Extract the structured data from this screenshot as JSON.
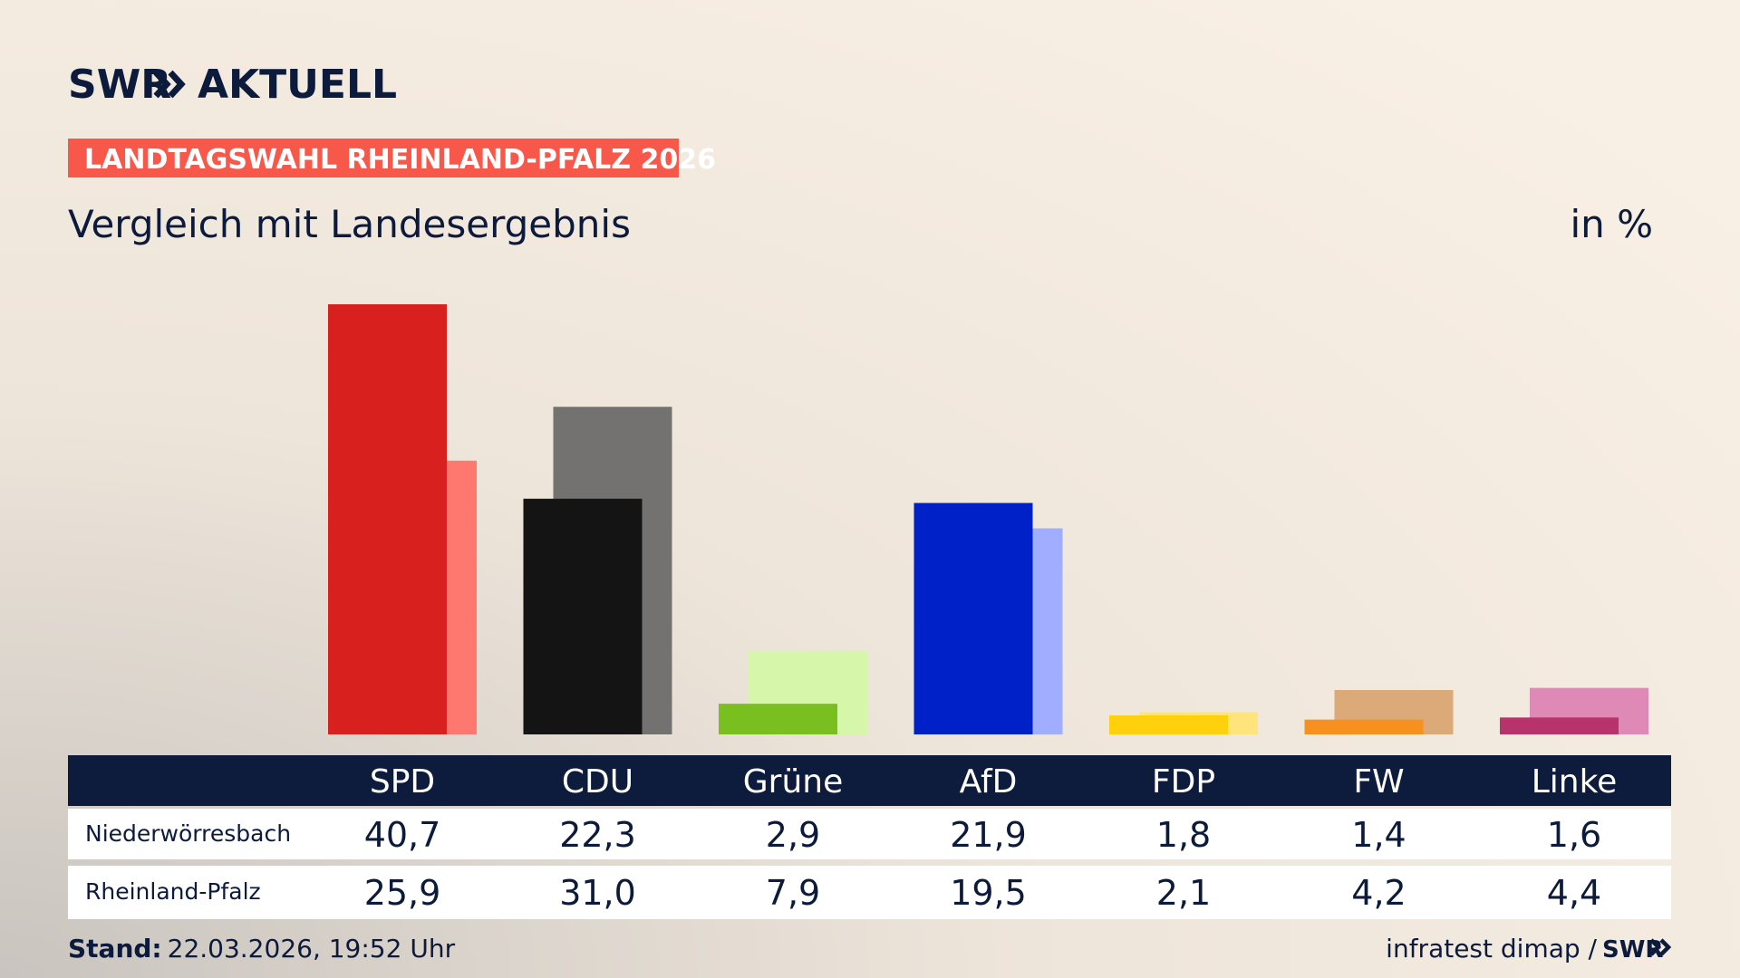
{
  "brand": "SWR",
  "brand_section": "AKTUELL",
  "kicker": "LANDTAGSWAHL RHEINLAND-PFALZ 2026",
  "chart_data": {
    "type": "bar",
    "title": "Vergleich mit Landesergebnis",
    "unit": "in %",
    "categories": [
      "SPD",
      "CDU",
      "Grüne",
      "AfD",
      "FDP",
      "FW",
      "Linke"
    ],
    "series": [
      {
        "name": "Niederwörresbach",
        "colors": [
          "#d8201f",
          "#141414",
          "#7abf20",
          "#0020c8",
          "#ffd00c",
          "#f7901f",
          "#b8336c"
        ],
        "values": [
          40.7,
          22.3,
          2.9,
          21.9,
          1.8,
          1.4,
          1.6
        ],
        "value_labels": [
          "40,7",
          "22,3",
          "2,9",
          "21,9",
          "1,8",
          "1,4",
          "1,6"
        ]
      },
      {
        "name": "Rheinland-Pfalz",
        "colors": [
          "#ff7870",
          "#737271",
          "#d6f6aa",
          "#a1aeff",
          "#ffe47b",
          "#dbaa78",
          "#de89b6"
        ],
        "values": [
          25.9,
          31.0,
          7.9,
          19.5,
          2.1,
          4.2,
          4.4
        ],
        "value_labels": [
          "25,9",
          "31,0",
          "7,9",
          "19,5",
          "2,1",
          "4,2",
          "4,4"
        ]
      }
    ]
  },
  "footer": {
    "stand_label": "Stand:",
    "stand": "22.03.2026, 19:52 Uhr",
    "source": "infratest dimap /",
    "source_brand": "SWR"
  }
}
